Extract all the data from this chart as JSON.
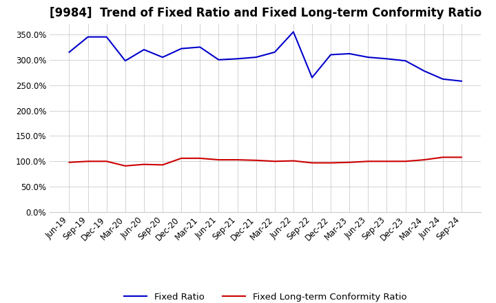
{
  "title": "[9984]  Trend of Fixed Ratio and Fixed Long-term Conformity Ratio",
  "x_labels": [
    "Jun-19",
    "Sep-19",
    "Dec-19",
    "Mar-20",
    "Jun-20",
    "Sep-20",
    "Dec-20",
    "Mar-21",
    "Jun-21",
    "Sep-21",
    "Dec-21",
    "Mar-22",
    "Jun-22",
    "Sep-22",
    "Dec-22",
    "Mar-23",
    "Jun-23",
    "Sep-23",
    "Dec-23",
    "Mar-24",
    "Jun-24",
    "Sep-24"
  ],
  "fixed_ratio": [
    315,
    345,
    345,
    298,
    320,
    305,
    322,
    325,
    300,
    302,
    305,
    315,
    355,
    265,
    310,
    312,
    305,
    302,
    298,
    278,
    262,
    258
  ],
  "fixed_lt_ratio": [
    98,
    100,
    100,
    91,
    94,
    93,
    106,
    106,
    103,
    103,
    102,
    100,
    101,
    97,
    97,
    98,
    100,
    100,
    100,
    103,
    108,
    108
  ],
  "fixed_ratio_color": "#0000cc",
  "fixed_lt_ratio_color": "#cc0000",
  "ylim": [
    0,
    370
  ],
  "yticks": [
    0,
    50,
    100,
    150,
    200,
    250,
    300,
    350
  ],
  "legend_labels": [
    "Fixed Ratio",
    "Fixed Long-term Conformity Ratio"
  ],
  "background_color": "#ffffff",
  "grid_color": "#cccccc",
  "title_fontsize": 12,
  "tick_fontsize": 8.5,
  "legend_fontsize": 9.5,
  "linewidth": 1.5
}
